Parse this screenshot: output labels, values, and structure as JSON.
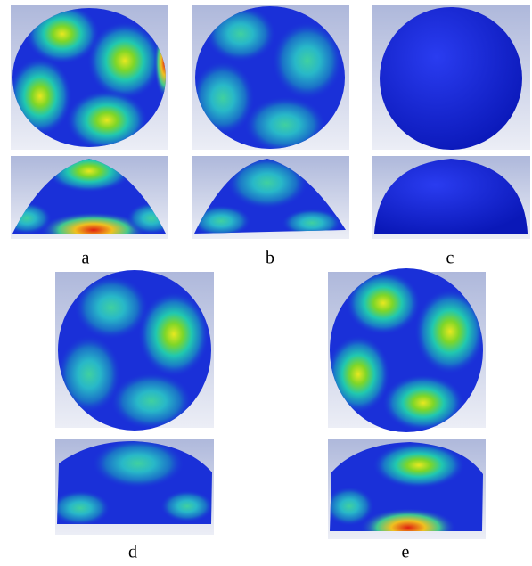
{
  "labels": [
    "a",
    "b",
    "c",
    "d",
    "e"
  ]
}
